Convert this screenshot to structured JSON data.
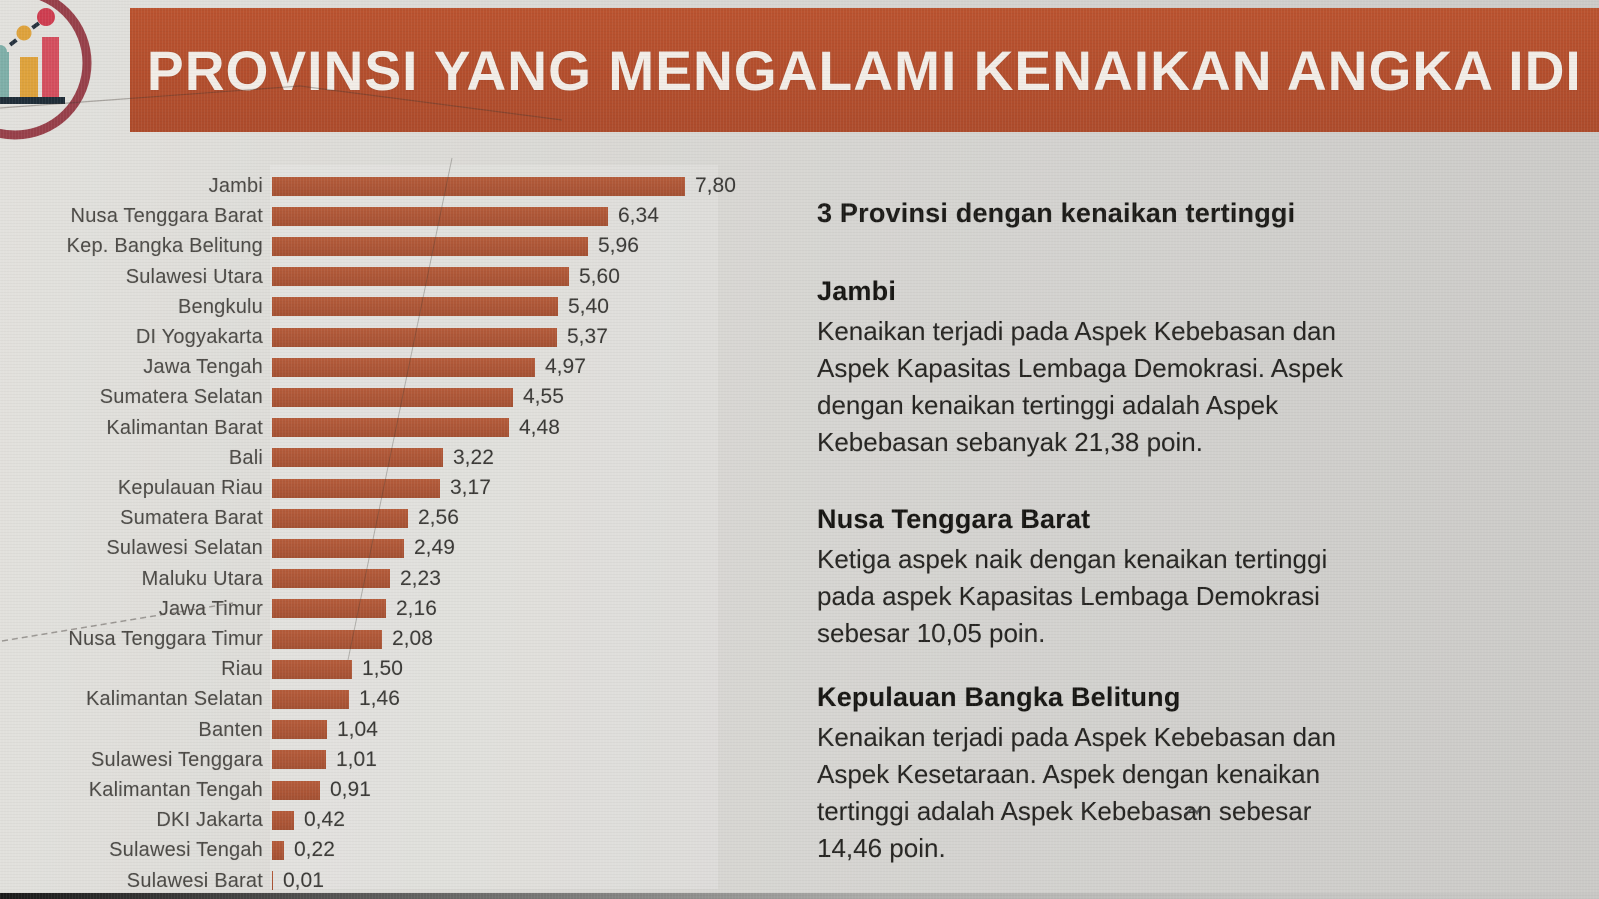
{
  "slide": {
    "title": "PROVINSI YANG MENGALAMI KENAIKAN ANGKA IDI"
  },
  "logo": {
    "name": "rising-bar-chart-logo",
    "colors": {
      "teal": "#7EAFA8",
      "amber": "#DEA23C",
      "red": "#D44E5E",
      "arc_maroon": "#97404A",
      "baseline": "#1F2D38"
    }
  },
  "colors": {
    "banner": "#B34E2D",
    "banner_text": "#F2EDE7",
    "bar": "#AB5536",
    "background": "#D6D5D1",
    "label_text": "#4c4a46",
    "value_text": "#3b3a37",
    "body_text": "#262522"
  },
  "chart_data": {
    "type": "bar",
    "orientation": "horizontal",
    "title": "",
    "xlabel": "",
    "ylabel": "",
    "xlim": [
      0,
      8
    ],
    "grid": false,
    "legend": "none",
    "value_label_format": "comma-decimal",
    "categories": [
      "Jambi",
      "Nusa Tenggara Barat",
      "Kep. Bangka Belitung",
      "Sulawesi Utara",
      "Bengkulu",
      "DI Yogyakarta",
      "Jawa Tengah",
      "Sumatera Selatan",
      "Kalimantan Barat",
      "Bali",
      "Kepulauan Riau",
      "Sumatera Barat",
      "Sulawesi Selatan",
      "Maluku Utara",
      "Jawa Timur",
      "Nusa Tenggara Timur",
      "Riau",
      "Kalimantan Selatan",
      "Banten",
      "Sulawesi Tenggara",
      "Kalimantan Tengah",
      "DKI Jakarta",
      "Sulawesi Tengah",
      "Sulawesi Barat"
    ],
    "values": [
      7.8,
      6.34,
      5.96,
      5.6,
      5.4,
      5.37,
      4.97,
      4.55,
      4.48,
      3.22,
      3.17,
      2.56,
      2.49,
      2.23,
      2.16,
      2.08,
      1.5,
      1.46,
      1.04,
      1.01,
      0.91,
      0.42,
      0.22,
      0.01
    ],
    "value_labels": [
      "7,80",
      "6,34",
      "5,96",
      "5,60",
      "5,40",
      "5,37",
      "4,97",
      "4,55",
      "4,48",
      "3,22",
      "3,17",
      "2,56",
      "2,49",
      "2,23",
      "2,16",
      "2,08",
      "1,50",
      "1,46",
      "1,04",
      "1,01",
      "0,91",
      "0,42",
      "0,22",
      "0,01"
    ]
  },
  "panel": {
    "heading": "3 Provinsi dengan kenaikan tertinggi",
    "sections": [
      {
        "title": "Jambi",
        "lines": [
          "Kenaikan terjadi pada Aspek Kebebasan dan",
          "Aspek Kapasitas Lembaga Demokrasi. Aspek",
          "dengan kenaikan tertinggi adalah Aspek",
          "Kebebasan sebanyak 21,38 poin."
        ]
      },
      {
        "title": "Nusa Tenggara Barat",
        "lines": [
          "Ketiga aspek naik dengan kenaikan tertinggi",
          "pada aspek Kapasitas Lembaga Demokrasi",
          "sebesar 10,05 poin."
        ]
      },
      {
        "title": "Kepulauan Bangka Belitung",
        "lines": [
          "Kenaikan terjadi pada Aspek Kebebasan dan",
          "Aspek Kesetaraan. Aspek dengan kenaikan",
          "tertinggi adalah Aspek Kebebasan sebesar",
          "14,46 poin."
        ]
      }
    ]
  }
}
